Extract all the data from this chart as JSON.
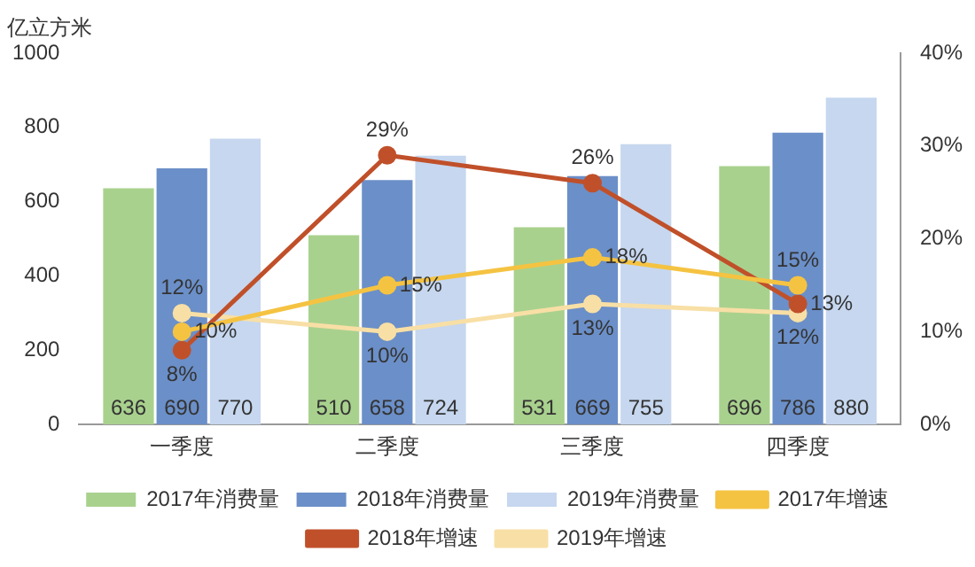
{
  "chart_data": {
    "type": "bar",
    "ylabel": "亿立方米",
    "categories": [
      "一季度",
      "二季度",
      "三季度",
      "四季度"
    ],
    "series": [
      {
        "name": "2017年消费量",
        "color": "#a9d18e",
        "values": [
          636,
          510,
          531,
          696
        ]
      },
      {
        "name": "2018年消费量",
        "color": "#6b8fc8",
        "values": [
          690,
          658,
          669,
          786
        ]
      },
      {
        "name": "2019年消费量",
        "color": "#c6d7ef",
        "values": [
          770,
          724,
          755,
          880
        ]
      },
      {
        "name": "2017年增速",
        "type": "line",
        "axis": "y2",
        "color": "#f5c342",
        "values": [
          10,
          15,
          18,
          15
        ],
        "value_labels": [
          "10%",
          "15%",
          "18%",
          "15%"
        ]
      },
      {
        "name": "2018年增速",
        "type": "line",
        "axis": "y2",
        "color": "#c0502a",
        "values": [
          8,
          29,
          26,
          13
        ],
        "value_labels": [
          "8%",
          "29%",
          "26%",
          "13%"
        ]
      },
      {
        "name": "2019年增速",
        "type": "line",
        "axis": "y2",
        "color": "#f8dfa5",
        "values": [
          12,
          10,
          13,
          12
        ],
        "value_labels": [
          "12%",
          "10%",
          "13%",
          "12%"
        ]
      }
    ],
    "ylim": [
      0,
      1000
    ],
    "yticks": [
      0,
      200,
      400,
      600,
      800,
      1000
    ],
    "y2lim": [
      0,
      40
    ],
    "y2ticks": [
      {
        "value": 0,
        "label": "0%"
      },
      {
        "value": 10,
        "label": "10%"
      },
      {
        "value": 20,
        "label": "20%"
      },
      {
        "value": 30,
        "label": "30%"
      },
      {
        "value": 40,
        "label": "40%"
      }
    ],
    "data_labels": true,
    "marker": "circle",
    "legend": "bottom",
    "grid": false
  }
}
